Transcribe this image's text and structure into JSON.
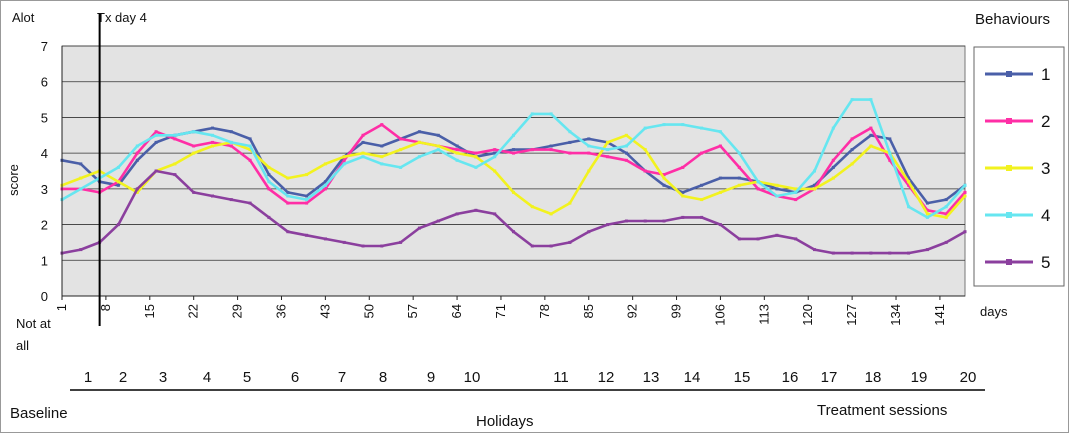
{
  "chart_data": {
    "type": "line",
    "title": "",
    "xlabel": "days",
    "ylabel": "score",
    "ylim": [
      0,
      7
    ],
    "xlim": [
      1,
      145
    ],
    "y_ticks": [
      "0",
      "1",
      "2",
      "3",
      "4",
      "5",
      "6",
      "7"
    ],
    "x_ticks": [
      "1",
      "8",
      "15",
      "22",
      "29",
      "36",
      "43",
      "50",
      "57",
      "64",
      "71",
      "78",
      "85",
      "92",
      "99",
      "106",
      "113",
      "120",
      "127",
      "134",
      "141"
    ],
    "y_top_label": "Alot",
    "y_bottom_label_line1": "Not at",
    "y_bottom_label_line2": "all",
    "marker_label": "Tx day 4",
    "marker_day": 7,
    "legend_title": "Behaviours",
    "legend_position": "right",
    "grid": true,
    "series": [
      {
        "name": "1",
        "color": "#4a5fa8",
        "x": [
          1,
          4,
          7,
          10,
          13,
          16,
          19,
          22,
          25,
          28,
          31,
          34,
          37,
          40,
          43,
          46,
          49,
          52,
          55,
          58,
          61,
          64,
          67,
          70,
          73,
          76,
          79,
          82,
          85,
          88,
          91,
          94,
          97,
          100,
          103,
          106,
          109,
          112,
          115,
          118,
          121,
          124,
          127,
          130,
          133,
          136,
          139,
          142,
          145
        ],
        "y": [
          3.8,
          3.7,
          3.2,
          3.1,
          3.8,
          4.3,
          4.5,
          4.6,
          4.7,
          4.6,
          4.4,
          3.4,
          2.9,
          2.8,
          3.2,
          3.9,
          4.3,
          4.2,
          4.4,
          4.6,
          4.5,
          4.2,
          3.9,
          4.0,
          4.1,
          4.1,
          4.2,
          4.3,
          4.4,
          4.3,
          4.0,
          3.5,
          3.1,
          2.9,
          3.1,
          3.3,
          3.3,
          3.2,
          3.0,
          2.9,
          3.1,
          3.6,
          4.1,
          4.5,
          4.4,
          3.3,
          2.6,
          2.7,
          3.1
        ]
      },
      {
        "name": "2",
        "color": "#ff2ea6",
        "x": [
          1,
          4,
          7,
          10,
          13,
          16,
          19,
          22,
          25,
          28,
          31,
          34,
          37,
          40,
          43,
          46,
          49,
          52,
          55,
          58,
          61,
          64,
          67,
          70,
          73,
          76,
          79,
          82,
          85,
          88,
          91,
          94,
          97,
          100,
          103,
          106,
          109,
          112,
          115,
          118,
          121,
          124,
          127,
          130,
          133,
          136,
          139,
          142,
          145
        ],
        "y": [
          3.0,
          3.0,
          2.9,
          3.2,
          4.0,
          4.6,
          4.4,
          4.2,
          4.3,
          4.2,
          3.8,
          3.0,
          2.6,
          2.6,
          3.0,
          3.8,
          4.5,
          4.8,
          4.4,
          4.3,
          4.2,
          4.1,
          4.0,
          4.1,
          4.0,
          4.1,
          4.1,
          4.0,
          4.0,
          3.9,
          3.8,
          3.5,
          3.4,
          3.6,
          4.0,
          4.2,
          3.6,
          3.0,
          2.8,
          2.7,
          3.0,
          3.8,
          4.4,
          4.7,
          3.8,
          3.1,
          2.4,
          2.3,
          2.9
        ]
      },
      {
        "name": "3",
        "color": "#f2f21f",
        "x": [
          1,
          4,
          7,
          10,
          13,
          16,
          19,
          22,
          25,
          28,
          31,
          34,
          37,
          40,
          43,
          46,
          49,
          52,
          55,
          58,
          61,
          64,
          67,
          70,
          73,
          76,
          79,
          82,
          85,
          88,
          91,
          94,
          97,
          100,
          103,
          106,
          109,
          112,
          115,
          118,
          121,
          124,
          127,
          130,
          133,
          136,
          139,
          142,
          145
        ],
        "y": [
          3.1,
          3.3,
          3.5,
          3.2,
          2.9,
          3.5,
          3.7,
          4.0,
          4.2,
          4.3,
          4.1,
          3.6,
          3.3,
          3.4,
          3.7,
          3.9,
          4.0,
          3.9,
          4.1,
          4.3,
          4.2,
          4.0,
          3.9,
          3.5,
          2.9,
          2.5,
          2.3,
          2.6,
          3.5,
          4.3,
          4.5,
          4.1,
          3.3,
          2.8,
          2.7,
          2.9,
          3.1,
          3.2,
          3.1,
          3.0,
          3.0,
          3.3,
          3.7,
          4.2,
          4.0,
          3.2,
          2.3,
          2.2,
          2.8
        ]
      },
      {
        "name": "4",
        "color": "#66e6f0",
        "x": [
          1,
          4,
          7,
          10,
          13,
          16,
          19,
          22,
          25,
          28,
          31,
          34,
          37,
          40,
          43,
          46,
          49,
          52,
          55,
          58,
          61,
          64,
          67,
          70,
          73,
          76,
          79,
          82,
          85,
          88,
          91,
          94,
          97,
          100,
          103,
          106,
          109,
          112,
          115,
          118,
          121,
          124,
          127,
          130,
          133,
          136,
          139,
          142,
          145
        ],
        "y": [
          2.7,
          3.0,
          3.3,
          3.6,
          4.2,
          4.5,
          4.5,
          4.6,
          4.5,
          4.3,
          4.2,
          3.2,
          2.8,
          2.7,
          3.1,
          3.7,
          3.9,
          3.7,
          3.6,
          3.9,
          4.1,
          3.8,
          3.6,
          3.9,
          4.5,
          5.1,
          5.1,
          4.6,
          4.2,
          4.1,
          4.2,
          4.7,
          4.8,
          4.8,
          4.7,
          4.6,
          4.0,
          3.2,
          2.8,
          2.9,
          3.5,
          4.7,
          5.5,
          5.5,
          4.0,
          2.5,
          2.2,
          2.5,
          3.1
        ]
      },
      {
        "name": "5",
        "color": "#8b3f9e",
        "x": [
          1,
          4,
          7,
          10,
          13,
          16,
          19,
          22,
          25,
          28,
          31,
          34,
          37,
          40,
          43,
          46,
          49,
          52,
          55,
          58,
          61,
          64,
          67,
          70,
          73,
          76,
          79,
          82,
          85,
          88,
          91,
          94,
          97,
          100,
          103,
          106,
          109,
          112,
          115,
          118,
          121,
          124,
          127,
          130,
          133,
          136,
          139,
          142,
          145
        ],
        "y": [
          1.2,
          1.3,
          1.5,
          2.0,
          3.0,
          3.5,
          3.4,
          2.9,
          2.8,
          2.7,
          2.6,
          2.2,
          1.8,
          1.7,
          1.6,
          1.5,
          1.4,
          1.4,
          1.5,
          1.9,
          2.1,
          2.3,
          2.4,
          2.3,
          1.8,
          1.4,
          1.4,
          1.5,
          1.8,
          2.0,
          2.1,
          2.1,
          2.1,
          2.2,
          2.2,
          2.0,
          1.6,
          1.6,
          1.7,
          1.6,
          1.3,
          1.2,
          1.2,
          1.2,
          1.2,
          1.2,
          1.3,
          1.5,
          1.8
        ]
      }
    ],
    "sessions": {
      "labels": [
        "1",
        "2",
        "3",
        "4",
        "5",
        "6",
        "7",
        "8",
        "9",
        "10",
        "11",
        "12",
        "13",
        "14",
        "15",
        "16",
        "17",
        "18",
        "19",
        "20"
      ],
      "sections": [
        "Baseline",
        "Holidays",
        "Treatment sessions"
      ]
    }
  }
}
